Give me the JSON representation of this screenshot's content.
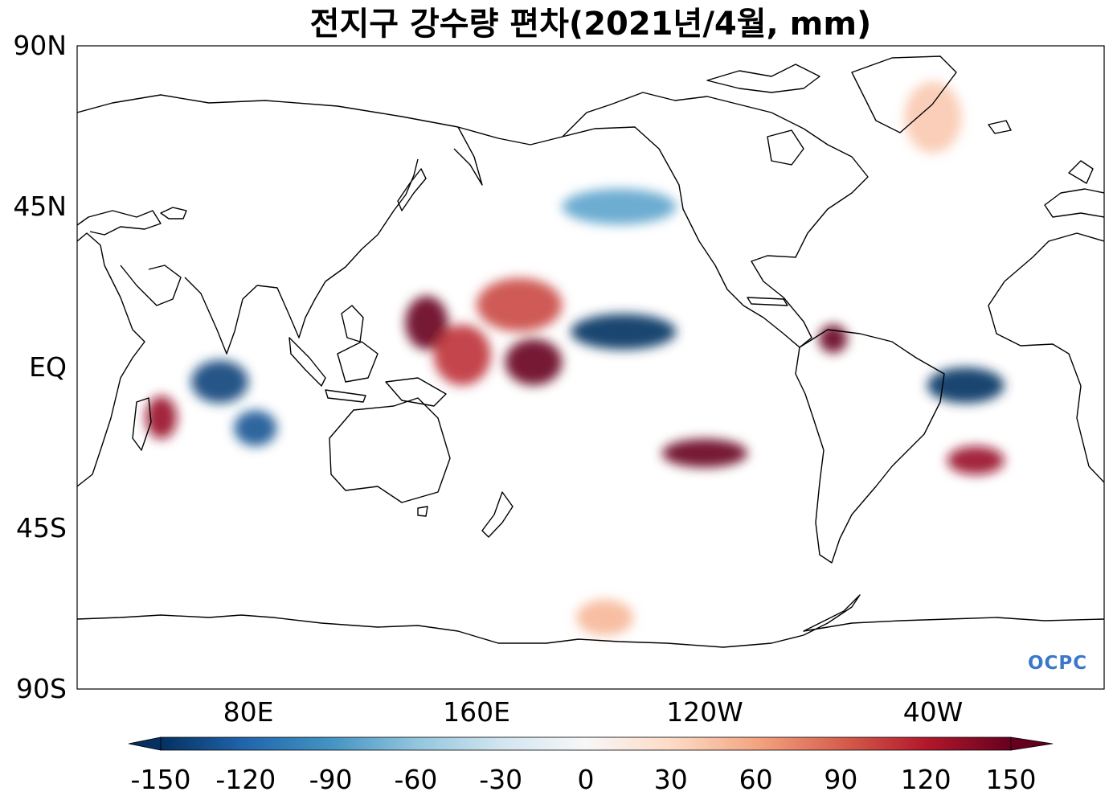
{
  "title": "전지구 강수량 편차(2021년/4월, mm)",
  "map": {
    "projection": "PlateCarree",
    "central_longitude": 200,
    "lon_range": [
      20,
      380
    ],
    "lat_range": [
      -90,
      90
    ],
    "lat_ticks": [
      {
        "value": 90,
        "label": "90N"
      },
      {
        "value": 45,
        "label": "45N"
      },
      {
        "value": 0,
        "label": "EQ"
      },
      {
        "value": -45,
        "label": "45S"
      },
      {
        "value": -90,
        "label": "90S"
      }
    ],
    "lon_ticks": [
      {
        "value": 80,
        "label": "80E"
      },
      {
        "value": 160,
        "label": "160E"
      },
      {
        "value": 240,
        "label": "120W"
      },
      {
        "value": 320,
        "label": "40W"
      }
    ]
  },
  "colorbar": {
    "cmap": "RdBu_r",
    "range": [
      -150,
      150
    ],
    "extend": "both",
    "ticks": [
      {
        "value": -150,
        "label": "-150"
      },
      {
        "value": -120,
        "label": "-120"
      },
      {
        "value": -90,
        "label": "-90"
      },
      {
        "value": -60,
        "label": "-60"
      },
      {
        "value": -30,
        "label": "-30"
      },
      {
        "value": 0,
        "label": "0"
      },
      {
        "value": 30,
        "label": "30"
      },
      {
        "value": 60,
        "label": "60"
      },
      {
        "value": 90,
        "label": "90"
      },
      {
        "value": 120,
        "label": "120"
      },
      {
        "value": 150,
        "label": "150"
      }
    ]
  },
  "anomaly_regions": [
    {
      "region": "western Pacific / Philippines",
      "lon": [
        135,
        150
      ],
      "lat": [
        5,
        20
      ],
      "value": 150
    },
    {
      "region": "tropical western Pacific",
      "lon": [
        145,
        165
      ],
      "lat": [
        -5,
        12
      ],
      "value": 110
    },
    {
      "region": "central tropical Pacific",
      "lon": [
        170,
        190
      ],
      "lat": [
        -5,
        8
      ],
      "value": 150
    },
    {
      "region": "north-central Pacific",
      "lon": [
        160,
        190
      ],
      "lat": [
        10,
        25
      ],
      "value": 100
    },
    {
      "region": "equatorial east-central Pacific",
      "lon": [
        193,
        230
      ],
      "lat": [
        5,
        15
      ],
      "value": -150
    },
    {
      "region": "southeast Pacific",
      "lon": [
        225,
        255
      ],
      "lat": [
        -28,
        -20
      ],
      "value": 150
    },
    {
      "region": "equatorial Atlantic / NE Brazil",
      "lon": [
        318,
        345
      ],
      "lat": [
        -10,
        0
      ],
      "value": -150
    },
    {
      "region": "western equatorial Indian Ocean",
      "lon": [
        60,
        80
      ],
      "lat": [
        -10,
        2
      ],
      "value": -140
    },
    {
      "region": "tropical south Indian Ocean",
      "lon": [
        75,
        90
      ],
      "lat": [
        -22,
        -12
      ],
      "value": -130
    },
    {
      "region": "Madagascar",
      "lon": [
        44,
        55
      ],
      "lat": [
        -20,
        -8
      ],
      "value": 130
    },
    {
      "region": "northwest Pacific",
      "lon": [
        190,
        230
      ],
      "lat": [
        40,
        50
      ],
      "value": -80
    },
    {
      "region": "Panama / Colombia",
      "lon": [
        280,
        290
      ],
      "lat": [
        4,
        12
      ],
      "value": 150
    },
    {
      "region": "subtropical South Atlantic",
      "lon": [
        325,
        345
      ],
      "lat": [
        -30,
        -22
      ],
      "value": 130
    },
    {
      "region": "Southern Ocean",
      "lon": [
        195,
        215
      ],
      "lat": [
        -75,
        -65
      ],
      "value": 50
    },
    {
      "region": "Greenland",
      "lon": [
        310,
        330
      ],
      "lat": [
        60,
        80
      ],
      "value": 40
    }
  ],
  "logo_text": "OCPC"
}
